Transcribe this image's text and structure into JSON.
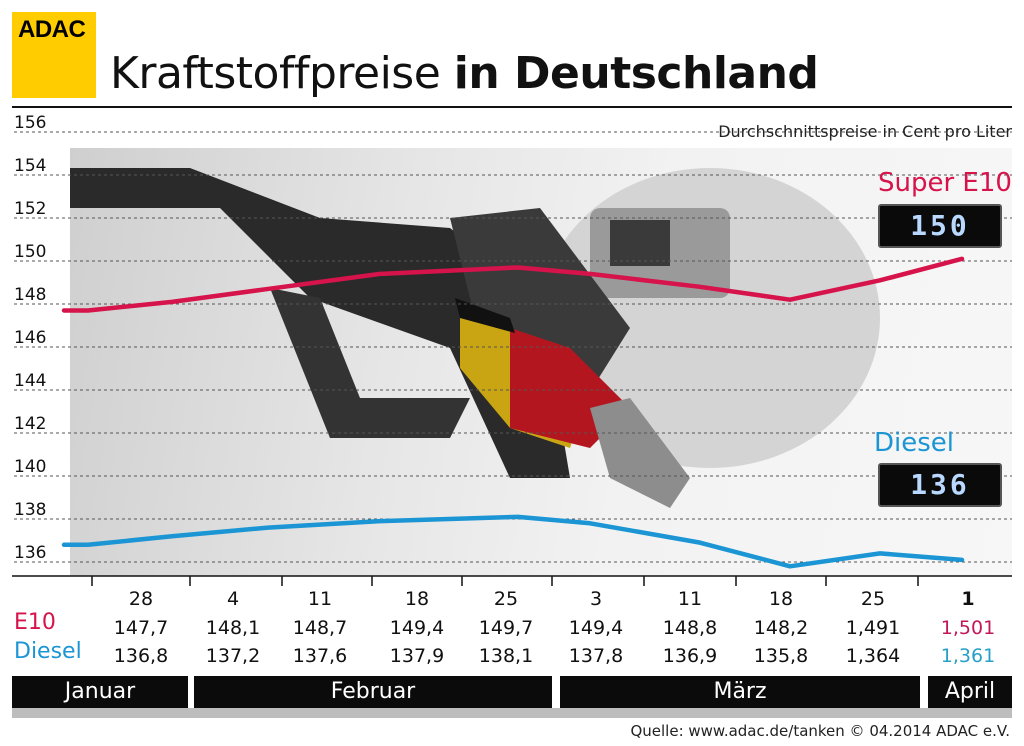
{
  "logo_text": "ADAC",
  "title": {
    "light": "Kraftstoffpreise ",
    "bold": "in Deutschland"
  },
  "note": "Durchschnittspreise in Cent pro Liter",
  "labels": {
    "e10": "Super E10",
    "diesel": "Diesel"
  },
  "displays": {
    "e10": "150",
    "diesel": "136"
  },
  "colors": {
    "e10": "#d6134b",
    "diesel": "#1b95d4",
    "e10_last": "#c2185b",
    "diesel_last": "#27a0c8"
  },
  "table": {
    "e10_label": "E10",
    "diesel_label": "Diesel",
    "dates": [
      "28",
      "4",
      "11",
      "18",
      "25",
      "3",
      "11",
      "18",
      "25",
      "1"
    ],
    "e10_values": [
      "147,7",
      "148,1",
      "148,7",
      "149,4",
      "149,7",
      "149,4",
      "148,8",
      "148,2",
      "1,491",
      "1,501"
    ],
    "diesel_values": [
      "136,8",
      "137,2",
      "137,6",
      "137,9",
      "138,1",
      "137,8",
      "136,9",
      "135,8",
      "1,364",
      "1,361"
    ]
  },
  "months": [
    "Januar",
    "Februar",
    "März",
    "April"
  ],
  "source": "Quelle: www.adac.de/tanken  © 04.2014  ADAC e.V.",
  "chart_data": {
    "type": "line",
    "title": "Kraftstoffpreise in Deutschland",
    "ylabel": "Durchschnittspreise in Cent pro Liter",
    "ylim": [
      136,
      156
    ],
    "yticks": [
      136,
      138,
      140,
      142,
      144,
      146,
      148,
      150,
      152,
      154,
      156
    ],
    "categories": [
      "28",
      "4",
      "11",
      "18",
      "25",
      "3",
      "11",
      "18",
      "25",
      "1"
    ],
    "grid": true,
    "series": [
      {
        "name": "Super E10",
        "values": [
          147.7,
          148.1,
          148.7,
          149.4,
          149.7,
          149.4,
          148.8,
          148.2,
          149.1,
          150.1
        ]
      },
      {
        "name": "Diesel",
        "values": [
          136.8,
          137.2,
          137.6,
          137.9,
          138.1,
          137.8,
          136.9,
          135.8,
          136.4,
          136.1
        ]
      }
    ]
  }
}
